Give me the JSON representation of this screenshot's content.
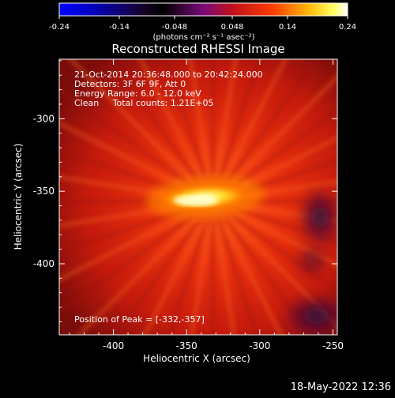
{
  "colorbar": {
    "ticks": [
      "-0.24",
      "-0.14",
      "-0.048",
      "0.048",
      "0.14",
      "0.24"
    ],
    "tick_values": [
      -0.24,
      -0.14,
      -0.048,
      0.048,
      0.14,
      0.24
    ],
    "range": [
      -0.24,
      0.24
    ],
    "units_label": "(photons cm⁻² s⁻¹ asec⁻²)"
  },
  "annotations": {
    "line1": "21-Oct-2014 20:36:48.000 to 20:42:24.000",
    "line2": "Detectors: 3F 6F 9F, Att 0",
    "line3": "Energy Range: 6.0 - 12.0 keV",
    "line4": "Clean     Total counts: 1.21E+05",
    "peak": "Position of Peak = [-332,-357]"
  },
  "timestamp": "18-May-2022 12:36",
  "chart_data": {
    "type": "heatmap",
    "title": "Reconstructed RHESSI Image",
    "xlabel": "Heliocentric X (arcsec)",
    "ylabel": "Heliocentric Y (arcsec)",
    "xlim": [
      -437,
      -247
    ],
    "ylim": [
      -449,
      -259
    ],
    "x_ticks": [
      -400,
      -350,
      -300,
      -250
    ],
    "x_tick_labels": [
      "-400",
      "-350",
      "-300",
      "-250"
    ],
    "y_ticks": [
      -300,
      -350,
      -400
    ],
    "y_tick_labels": [
      "-300",
      "-350",
      "-400"
    ],
    "colormap": "black-purple-red-orange-yellow-white",
    "peak": [
      -332,
      -357
    ],
    "source_shape": "elongated bright kernel, roughly -367 to -303 in X, centered near Y -354",
    "background": "red halo with faint radial streaks, darker purple regions at lower right"
  }
}
